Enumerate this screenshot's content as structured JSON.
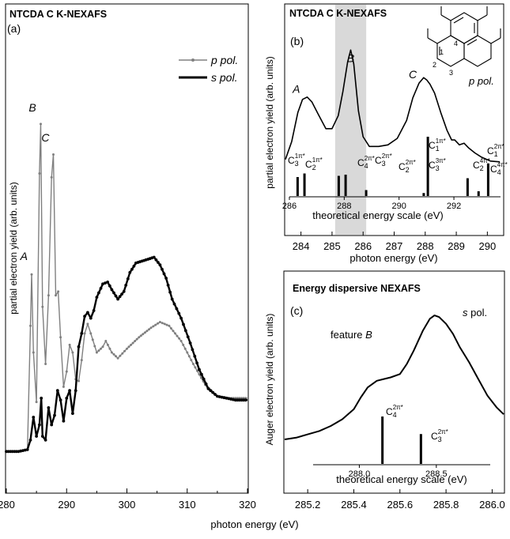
{
  "figure": {
    "shared_xlabel": "photon energy (eV)",
    "colors": {
      "p_pol": "#808080",
      "s_pol": "#000000",
      "highlight": "#d9d9d9",
      "axes": "#000000"
    }
  },
  "chart_data": [
    {
      "id": "a",
      "type": "line",
      "panel_label": "(a)",
      "title": "NTCDA C K-NEXAFS",
      "ylabel": "partial electron yield (arb. units)",
      "xlabel": "photon energy (eV)",
      "xlim": [
        280,
        320
      ],
      "ylim": [
        0,
        1.1
      ],
      "xticks": [
        280,
        290,
        300,
        310,
        320
      ],
      "legend": {
        "placement": "top-right",
        "entries": [
          "p pol.",
          "s pol."
        ]
      },
      "peak_labels": [
        {
          "text": "A",
          "x": 284.2,
          "y": 0.565
        },
        {
          "text": "B",
          "x": 285.6,
          "y": 0.955
        },
        {
          "text": "C",
          "x": 287.8,
          "y": 0.876
        }
      ],
      "series": [
        {
          "name": "p pol.",
          "color": "#808080",
          "x": [
            280,
            282,
            283.5,
            284.0,
            284.2,
            284.5,
            285.0,
            285.5,
            285.7,
            286.0,
            286.5,
            287.0,
            287.5,
            287.8,
            288.2,
            288.6,
            289.0,
            289.5,
            290.0,
            290.5,
            291.0,
            291.5,
            292.0,
            292.5,
            293.0,
            293.5,
            294.0,
            295.0,
            296.0,
            296.5,
            297.5,
            298.5,
            300.0,
            302.0,
            304.0,
            305.5,
            307.0,
            309.0,
            311.0,
            313.0,
            315.0,
            317.0,
            320.0
          ],
          "y": [
            0.07,
            0.07,
            0.075,
            0.4,
            0.535,
            0.33,
            0.2,
            0.8,
            0.93,
            0.45,
            0.3,
            0.48,
            0.79,
            0.85,
            0.48,
            0.49,
            0.37,
            0.24,
            0.28,
            0.35,
            0.33,
            0.26,
            0.255,
            0.31,
            0.38,
            0.405,
            0.38,
            0.33,
            0.345,
            0.36,
            0.33,
            0.315,
            0.34,
            0.37,
            0.395,
            0.41,
            0.4,
            0.36,
            0.3,
            0.245,
            0.215,
            0.21,
            0.21
          ]
        },
        {
          "name": "s pol.",
          "color": "#000000",
          "x": [
            280,
            282,
            283.5,
            284.0,
            284.5,
            285.0,
            285.5,
            285.8,
            286.0,
            286.5,
            287.0,
            287.5,
            288.0,
            288.5,
            289.0,
            289.5,
            290.0,
            290.5,
            291.0,
            291.5,
            292.0,
            292.5,
            293.0,
            293.5,
            294.0,
            294.5,
            295.0,
            296.0,
            296.8,
            297.5,
            298.5,
            299.5,
            300.5,
            301.5,
            302.5,
            303.5,
            304.5,
            305.5,
            306.5,
            307.5,
            309.0,
            310.5,
            312.0,
            313.5,
            315.0,
            316.5,
            318.0,
            320.0
          ],
          "y": [
            0.07,
            0.07,
            0.075,
            0.1,
            0.16,
            0.11,
            0.14,
            0.21,
            0.11,
            0.1,
            0.185,
            0.14,
            0.165,
            0.23,
            0.205,
            0.15,
            0.21,
            0.23,
            0.17,
            0.23,
            0.345,
            0.38,
            0.425,
            0.435,
            0.42,
            0.44,
            0.475,
            0.51,
            0.515,
            0.495,
            0.47,
            0.49,
            0.54,
            0.565,
            0.57,
            0.575,
            0.58,
            0.56,
            0.525,
            0.47,
            0.42,
            0.355,
            0.285,
            0.235,
            0.215,
            0.21,
            0.205,
            0.205
          ]
        }
      ]
    },
    {
      "id": "b",
      "type": "line",
      "panel_label": "(b)",
      "title": "NTCDA C K-NEXAFS",
      "ylabel": "partial electron yield (arb. units)",
      "xlabel": "photon energy (eV)",
      "xlim": [
        283.5,
        290.5
      ],
      "ylim": [
        0,
        1
      ],
      "xticks": [
        284,
        285,
        286,
        287,
        288,
        289,
        290
      ],
      "highlight_band": [
        285.1,
        286.1
      ],
      "polarization_note": "p pol.",
      "peak_labels": [
        {
          "text": "A",
          "x": 283.85,
          "y": 0.67
        },
        {
          "text": "B",
          "x": 285.6,
          "y": 0.86
        },
        {
          "text": "C",
          "x": 287.6,
          "y": 0.76
        }
      ],
      "series": [
        {
          "name": "p pol.",
          "color": "#000000",
          "x": [
            283.5,
            283.7,
            283.9,
            284.05,
            284.2,
            284.35,
            284.55,
            284.8,
            285.0,
            285.2,
            285.35,
            285.5,
            285.6,
            285.7,
            285.85,
            286.0,
            286.2,
            286.5,
            286.8,
            287.1,
            287.4,
            287.6,
            287.8,
            287.95,
            288.05,
            288.15,
            288.3,
            288.5,
            288.7,
            288.85,
            288.95,
            289.1,
            289.25,
            289.4,
            289.6,
            289.8,
            290.1,
            290.4
          ],
          "y": [
            0.26,
            0.37,
            0.55,
            0.63,
            0.645,
            0.615,
            0.54,
            0.45,
            0.45,
            0.53,
            0.68,
            0.86,
            0.935,
            0.85,
            0.56,
            0.4,
            0.34,
            0.34,
            0.35,
            0.39,
            0.5,
            0.64,
            0.73,
            0.765,
            0.75,
            0.725,
            0.67,
            0.55,
            0.44,
            0.38,
            0.38,
            0.35,
            0.36,
            0.33,
            0.3,
            0.275,
            0.25,
            0.245
          ]
        }
      ],
      "theory": {
        "axis_label": "theoretical energy scale (eV)",
        "xlim": [
          286,
          293.7
        ],
        "xticks": [
          286,
          288,
          290,
          292
        ],
        "transitions": [
          {
            "label": "C",
            "sub": "3",
            "sup": "1π*",
            "energy": 286.3,
            "intensity": 0.32
          },
          {
            "label": "C",
            "sub": "2",
            "sup": "1π*",
            "energy": 286.55,
            "intensity": 0.38
          },
          {
            "label": "C",
            "sub": "4",
            "sup": "2π*",
            "energy": 287.8,
            "intensity": 0.34
          },
          {
            "label": "C",
            "sub": "3",
            "sup": "2π*",
            "energy": 288.05,
            "intensity": 0.36
          },
          {
            "label": "C",
            "sub": "2",
            "sup": "2π*",
            "energy": 288.8,
            "intensity": 0.1
          },
          {
            "label": "C",
            "sub": "3",
            "sup": "3π*",
            "energy": 290.9,
            "intensity": 0.05
          },
          {
            "label": "C",
            "sub": "1",
            "sup": "1π*",
            "energy": 291.05,
            "intensity": 1.0
          },
          {
            "label": "C",
            "sub": "2",
            "sup": "4π*",
            "energy": 292.5,
            "intensity": 0.3
          },
          {
            "label": "C",
            "sub": "4",
            "sup": "4π*",
            "energy": 292.9,
            "intensity": 0.08
          },
          {
            "label": "C",
            "sub": "1",
            "sup": "2π*",
            "energy": 293.25,
            "intensity": 0.55
          }
        ]
      },
      "molecule_atom_labels": [
        "1",
        "2",
        "3",
        "4"
      ]
    },
    {
      "id": "c",
      "type": "line",
      "panel_label": "(c)",
      "title": "Energy dispersive NEXAFS",
      "ylabel": "Auger electron yield (arb. units)",
      "xlabel": "photon energy (eV)",
      "xlim": [
        285.1,
        286.05
      ],
      "ylim": [
        0,
        1
      ],
      "xticks": [
        285.2,
        285.4,
        285.6,
        285.8,
        286.0
      ],
      "annotation": "feature B",
      "polarization_note": "s pol.",
      "series": [
        {
          "name": "s pol.",
          "color": "#000000",
          "x": [
            285.1,
            285.15,
            285.2,
            285.25,
            285.3,
            285.35,
            285.4,
            285.43,
            285.46,
            285.5,
            285.53,
            285.56,
            285.6,
            285.63,
            285.66,
            285.7,
            285.73,
            285.75,
            285.77,
            285.8,
            285.83,
            285.86,
            285.9,
            285.94,
            285.98,
            286.02,
            286.05
          ],
          "y": [
            0.17,
            0.18,
            0.2,
            0.22,
            0.25,
            0.29,
            0.35,
            0.42,
            0.48,
            0.52,
            0.53,
            0.54,
            0.56,
            0.62,
            0.7,
            0.82,
            0.89,
            0.91,
            0.9,
            0.86,
            0.8,
            0.72,
            0.63,
            0.53,
            0.43,
            0.36,
            0.32
          ]
        }
      ],
      "theory": {
        "axis_label": "theoretical energy scale (eV)",
        "xlim": [
          287.7,
          288.85
        ],
        "xticks": [
          288.0,
          288.5
        ],
        "transitions": [
          {
            "label": "C",
            "sub": "4",
            "sup": "2π*",
            "energy": 288.15,
            "intensity": 1.0
          },
          {
            "label": "C",
            "sub": "3",
            "sup": "2π*",
            "energy": 288.4,
            "intensity": 0.63
          }
        ]
      }
    }
  ]
}
